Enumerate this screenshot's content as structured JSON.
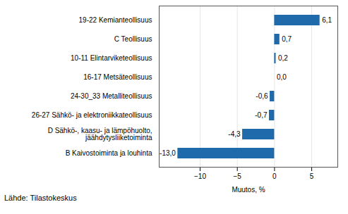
{
  "chart_data": {
    "type": "bar",
    "orientation": "horizontal",
    "categories": [
      "B Kaivostoiminta ja louhinta",
      "D Sähkö-, kaasu- ja lämpöhuolto,\njäähdytysliiketoiminta",
      "26-27 Sähkö- ja elektroniikkateollisuus",
      "24-30_33 Metalliteollisuus",
      "16-17 Metsäteollisuus",
      "10-11 Elintarviketeollisuus",
      "C Teollisuus",
      "19-22 Kemianteollisuus"
    ],
    "values": [
      -13.0,
      -4.3,
      -0.7,
      -0.6,
      0.0,
      0.2,
      0.7,
      6.1
    ],
    "value_labels": [
      "-13,0",
      "-4,3",
      "-0,7",
      "-0,6",
      "0,0",
      "0,2",
      "0,7",
      "6,1"
    ],
    "data_labels": true,
    "color": "#1f6aab",
    "xlabel": "Muutos, %",
    "xlim": [
      -15.5,
      8.5
    ],
    "xticks": [
      -10,
      -5,
      0,
      5
    ],
    "grid": true,
    "annotations": [
      "Lähde: Tilastokeskus"
    ]
  }
}
